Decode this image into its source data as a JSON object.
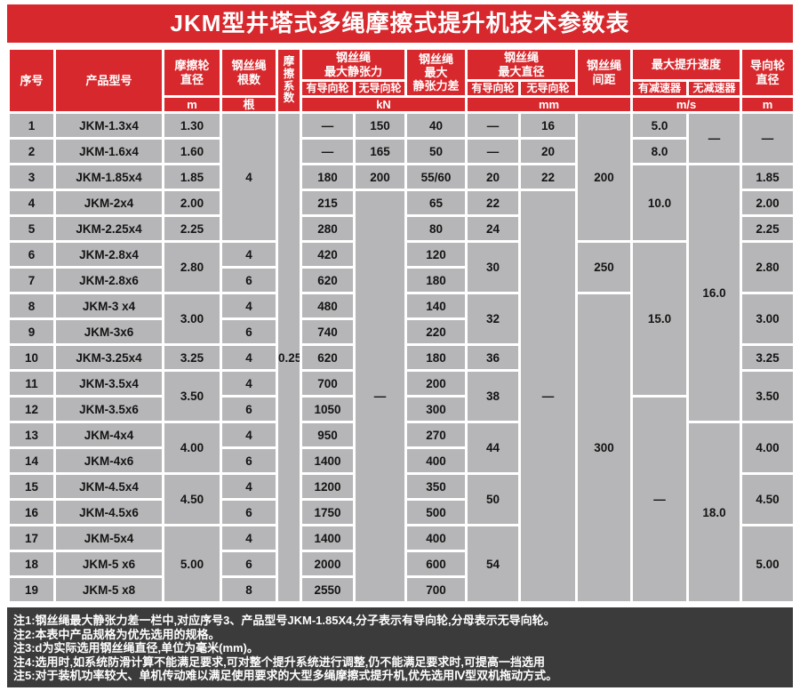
{
  "title": "JKM型井塔式多绳摩擦式提升机技术参数表",
  "colors": {
    "accent_red": "#d7282d",
    "cell_gray": "#b6b6b8",
    "notes_bg": "#3b3b3b",
    "border_white": "#ffffff",
    "text_dark": "#141414"
  },
  "header": {
    "serial": "序号",
    "model": "产品型号",
    "friction_wheel_diameter": "摩擦轮\n直径",
    "rope_count": "钢丝绳\n根数",
    "friction_coefficient": "摩\n擦\n系\n数",
    "max_static_tension": "钢丝绳\n最大静张力",
    "max_static_tension_diff": "钢丝绳\n最大\n静张力差",
    "max_rope_diameter": "钢丝绳\n最大直径",
    "rope_spacing": "钢丝绳\n间距",
    "max_speed": "最大提升速度",
    "guide_wheel_diameter": "导向轮\n直径",
    "with_guide_wheel": "有导向轮",
    "without_guide_wheel": "无导向轮",
    "with_reducer": "有减速器",
    "without_reducer": "无减速器",
    "unit_m": "m",
    "unit_root": "根",
    "unit_kn": "kN",
    "unit_mm": "mm",
    "unit_ms": "m/s"
  },
  "table": {
    "rows": [
      [
        {
          "t": "1"
        },
        {
          "t": "JKM-1.3x4"
        },
        {
          "t": "1.30"
        },
        {
          "t": "4",
          "rs": 5
        },
        {
          "t": "0.25",
          "rs": 19
        },
        {
          "t": "—"
        },
        {
          "t": "150"
        },
        {
          "t": "40"
        },
        {
          "t": "—"
        },
        {
          "t": "16"
        },
        {
          "t": "200",
          "rs": 5
        },
        {
          "t": "5.0"
        },
        {
          "t": "—",
          "rs": 2
        },
        {
          "t": "—",
          "rs": 2
        }
      ],
      [
        {
          "t": "2"
        },
        {
          "t": "JKM-1.6x4"
        },
        {
          "t": "1.60"
        },
        {
          "t": "—"
        },
        {
          "t": "165"
        },
        {
          "t": "50"
        },
        {
          "t": "—"
        },
        {
          "t": "20"
        },
        {
          "t": "8.0"
        }
      ],
      [
        {
          "t": "3"
        },
        {
          "t": "JKM-1.85x4"
        },
        {
          "t": "1.85"
        },
        {
          "t": "180"
        },
        {
          "t": "200"
        },
        {
          "t": "55/60"
        },
        {
          "t": "20"
        },
        {
          "t": "22"
        },
        {
          "t": "10.0",
          "rs": 3
        },
        {
          "t": "16.0",
          "rs": 10
        },
        {
          "t": "1.85"
        }
      ],
      [
        {
          "t": "4"
        },
        {
          "t": "JKM-2x4"
        },
        {
          "t": "2.00"
        },
        {
          "t": "215"
        },
        {
          "t": "—",
          "rs": 16
        },
        {
          "t": "65"
        },
        {
          "t": "22"
        },
        {
          "t": "—",
          "rs": 16
        },
        {
          "t": "2.00"
        }
      ],
      [
        {
          "t": "5"
        },
        {
          "t": "JKM-2.25x4"
        },
        {
          "t": "2.25"
        },
        {
          "t": "280"
        },
        {
          "t": "80"
        },
        {
          "t": "24"
        },
        {
          "t": "2.25"
        }
      ],
      [
        {
          "t": "6"
        },
        {
          "t": "JKM-2.8x4"
        },
        {
          "t": "2.80",
          "rs": 2
        },
        {
          "t": "4"
        },
        {
          "t": "420"
        },
        {
          "t": "120"
        },
        {
          "t": "30",
          "rs": 2
        },
        {
          "t": "250",
          "rs": 2
        },
        {
          "t": "15.0",
          "rs": 6
        },
        {
          "t": "2.80",
          "rs": 2
        }
      ],
      [
        {
          "t": "7"
        },
        {
          "t": "JKM-2.8x6"
        },
        {
          "t": "6"
        },
        {
          "t": "620"
        },
        {
          "t": "180"
        }
      ],
      [
        {
          "t": "8"
        },
        {
          "t": "JKM-3 x4"
        },
        {
          "t": "3.00",
          "rs": 2
        },
        {
          "t": "4"
        },
        {
          "t": "480"
        },
        {
          "t": "140"
        },
        {
          "t": "32",
          "rs": 2
        },
        {
          "t": "300",
          "rs": 12
        },
        {
          "t": "3.00",
          "rs": 2
        }
      ],
      [
        {
          "t": "9"
        },
        {
          "t": "JKM-3x6"
        },
        {
          "t": "6"
        },
        {
          "t": "740"
        },
        {
          "t": "220"
        }
      ],
      [
        {
          "t": "10"
        },
        {
          "t": "JKM-3.25x4"
        },
        {
          "t": "3.25"
        },
        {
          "t": "4"
        },
        {
          "t": "620"
        },
        {
          "t": "180"
        },
        {
          "t": "36"
        },
        {
          "t": "3.25"
        }
      ],
      [
        {
          "t": "11"
        },
        {
          "t": "JKM-3.5x4"
        },
        {
          "t": "3.50",
          "rs": 2
        },
        {
          "t": "4"
        },
        {
          "t": "700"
        },
        {
          "t": "200"
        },
        {
          "t": "38",
          "rs": 2
        },
        {
          "t": "3.50",
          "rs": 2
        }
      ],
      [
        {
          "t": "12"
        },
        {
          "t": "JKM-3.5x6"
        },
        {
          "t": "6"
        },
        {
          "t": "1050"
        },
        {
          "t": "300"
        },
        {
          "t": "—",
          "rs": 8
        }
      ],
      [
        {
          "t": "13"
        },
        {
          "t": "JKM-4x4"
        },
        {
          "t": "4.00",
          "rs": 2
        },
        {
          "t": "4"
        },
        {
          "t": "950"
        },
        {
          "t": "270"
        },
        {
          "t": "44",
          "rs": 2
        },
        {
          "t": "18.0",
          "rs": 7
        },
        {
          "t": "4.00",
          "rs": 2
        }
      ],
      [
        {
          "t": "14"
        },
        {
          "t": "JKM-4x6"
        },
        {
          "t": "6"
        },
        {
          "t": "1400"
        },
        {
          "t": "400"
        }
      ],
      [
        {
          "t": "15"
        },
        {
          "t": "JKM-4.5x4"
        },
        {
          "t": "4.50",
          "rs": 2
        },
        {
          "t": "4"
        },
        {
          "t": "1200"
        },
        {
          "t": "350"
        },
        {
          "t": "50",
          "rs": 2
        },
        {
          "t": "4.50",
          "rs": 2
        }
      ],
      [
        {
          "t": "16"
        },
        {
          "t": "JKM-4.5x6"
        },
        {
          "t": "6"
        },
        {
          "t": "1750"
        },
        {
          "t": "500"
        }
      ],
      [
        {
          "t": "17"
        },
        {
          "t": "JKM-5x4"
        },
        {
          "t": "5.00",
          "rs": 3
        },
        {
          "t": "4"
        },
        {
          "t": "1400"
        },
        {
          "t": "400"
        },
        {
          "t": "54",
          "rs": 3
        },
        {
          "t": "5.00",
          "rs": 3
        }
      ],
      [
        {
          "t": "18"
        },
        {
          "t": "JKM-5 x6"
        },
        {
          "t": "6"
        },
        {
          "t": "2000"
        },
        {
          "t": "600"
        }
      ],
      [
        {
          "t": "19"
        },
        {
          "t": "JKM-5 x8"
        },
        {
          "t": "8"
        },
        {
          "t": "2550"
        },
        {
          "t": "700"
        }
      ]
    ]
  },
  "notes": [
    "注1:钢丝绳最大静张力差一栏中,对应序号3、产品型号JKM-1.85X4,分子表示有导向轮,分母表示无导向轮。",
    "注2:本表中产品规格为优先选用的规格。",
    "注3:d为实际选用钢丝绳直径,单位为毫米(mm)。",
    "注4:选用时,如系统防滑计算不能满足要求,可对整个提升系统进行调整,仍不能满足要求时,可提高一挡选用",
    "注5:对于装机功率较大、单机传动难以满足使用要求的大型多绳摩擦式提升机,优先选用Ⅳ型双机拖动方式。"
  ]
}
